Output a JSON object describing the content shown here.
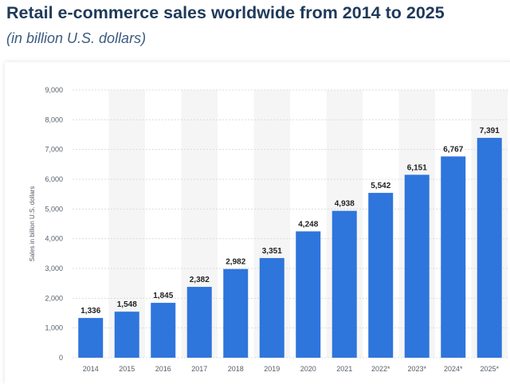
{
  "title": "Retail e-commerce sales worldwide from 2014 to 2025",
  "subtitle": "(in billion U.S. dollars)",
  "chart_data": {
    "type": "bar",
    "title": "Retail e-commerce sales worldwide from 2014 to 2025",
    "subtitle": "(in billion U.S. dollars)",
    "xlabel": "",
    "ylabel": "Sales in billion U.S. dollars",
    "categories": [
      "2014",
      "2015",
      "2016",
      "2017",
      "2018",
      "2019",
      "2020",
      "2021",
      "2022*",
      "2023*",
      "2024*",
      "2025*"
    ],
    "values": [
      1336,
      1548,
      1845,
      2382,
      2982,
      3351,
      4248,
      4938,
      5542,
      6151,
      6767,
      7391
    ],
    "value_labels": [
      "1,336",
      "1,548",
      "1,845",
      "2,382",
      "2,982",
      "3,351",
      "4,248",
      "4,938",
      "5,542",
      "6,151",
      "6,767",
      "7,391"
    ],
    "ylim": [
      0,
      9000
    ],
    "yticks": [
      0,
      1000,
      2000,
      3000,
      4000,
      5000,
      6000,
      7000,
      8000,
      9000
    ],
    "ytick_labels": [
      "0",
      "1,000",
      "2,000",
      "3,000",
      "4,000",
      "5,000",
      "6,000",
      "7,000",
      "8,000",
      "9,000"
    ],
    "grid": true,
    "bar_color": "#2e75dc",
    "alt_band_color": "#f5f5f5",
    "grid_color": "#dcdcdc"
  }
}
